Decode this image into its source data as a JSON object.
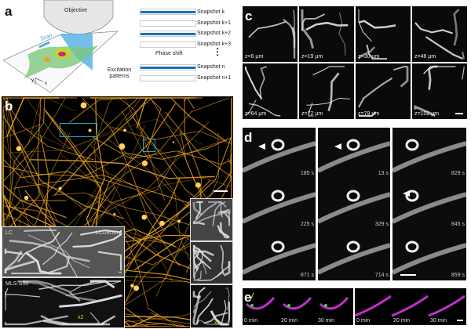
{
  "panel_labels": {
    "a": "a",
    "b": "b",
    "c": "c",
    "d": "d",
    "e": "e"
  },
  "panel_a": {
    "objective_label": "Objective",
    "scan_label": "Scan",
    "axis_labels": {
      "x": "x",
      "y": "y"
    },
    "snapshots": [
      "Snapshot k",
      "Snapshot k+1",
      "Snapshot k+2",
      "Snapshot k+3",
      "Snapshot n",
      "Snapshot n+1"
    ],
    "phase_shift_label": "Phase shift",
    "ellipsis": "⋮",
    "excitation_label": "Excitation patterns"
  },
  "panel_b": {
    "inset_labels": {
      "lc": "LC",
      "lcdeconv": "LCDeconv",
      "mls_sim": "MLS-SIM"
    },
    "magnification": "x2",
    "colors": {
      "neurons": "#e8a020",
      "roi_box": "#2aa6c8"
    }
  },
  "panel_c": {
    "depths": [
      "z=6 μm",
      "z=19 μm",
      "z=30 μm",
      "z=46 μm",
      "z=64 μm",
      "z=72 μm",
      "z=79 μm",
      "z=102 μm"
    ]
  },
  "panel_d": {
    "columns": [
      [
        "185 s",
        "225 s",
        "871 s"
      ],
      [
        "13 s",
        "329 s",
        "714 s"
      ],
      [
        "829 s",
        "845 s",
        "859 s"
      ]
    ]
  },
  "panel_e": {
    "groups": [
      [
        "0 min",
        "20 min",
        "30 min"
      ],
      [
        "0 min",
        "20 min",
        "30 min"
      ]
    ],
    "colors": {
      "membrane": "#c030c8",
      "marker": "#30e040",
      "arrow": "#e8d020"
    }
  }
}
